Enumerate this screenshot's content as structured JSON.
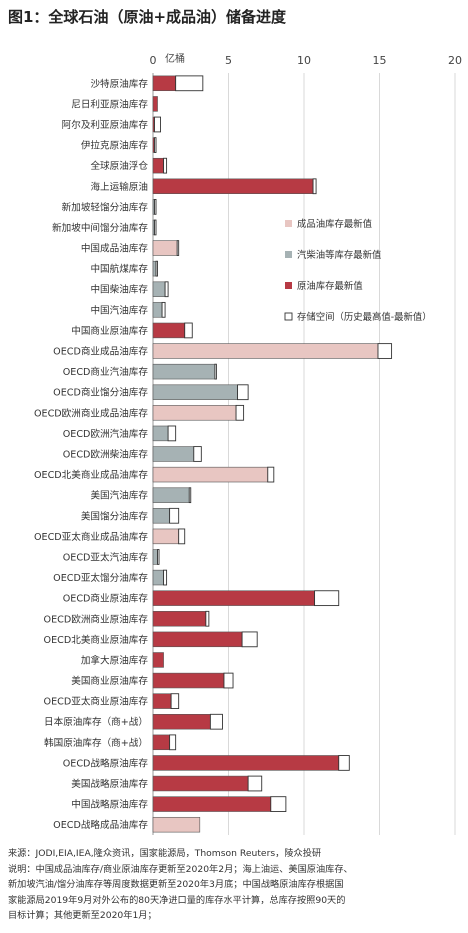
{
  "title": "图1：全球石油（原油+成品油）储备进度",
  "chart_data": {
    "type": "bar",
    "orientation": "horizontal",
    "stacked": true,
    "unit": "亿桶",
    "xlim": [
      0,
      20
    ],
    "xticks": [
      "0",
      "5",
      "10",
      "15",
      "20"
    ],
    "grid": true,
    "legend_position": "right",
    "legend": [
      {
        "key": "product",
        "label": "成品油库存最新值",
        "color": "#e8c6c2"
      },
      {
        "key": "distillate",
        "label": "汽柴油等库存最新值",
        "color": "#a6b2b4"
      },
      {
        "key": "crude",
        "label": "原油库存最新值",
        "color": "#b73a44"
      },
      {
        "key": "space",
        "label": "存储空间（历史最高值-最新值）",
        "color": "#ffffff"
      }
    ],
    "categories": [
      "沙特原油库存",
      "尼日利亚原油库存",
      "阿尔及利亚原油库存",
      "伊拉克原油库存",
      "全球原油浮仓",
      "海上运输原油",
      "新加坡轻馏分油库存",
      "新加坡中间馏分油库存",
      "中国成品油库存",
      "中国航煤库存",
      "中国柴油库存",
      "中国汽油库存",
      "中国商业原油库存",
      "OECD商业成品油库存",
      "OECD商业汽油库存",
      "OECD商业馏分油库存",
      "OECD欧洲商业成品油库存",
      "OECD欧洲汽油库存",
      "OECD欧洲柴油库存",
      "OECD北美商业成品油库存",
      "美国汽油库存",
      "美国馏分油库存",
      "OECD亚太商业成品油库存",
      "OECD亚太汽油库存",
      "OECD亚太馏分油库存",
      "OECD商业原油库存",
      "OECD欧洲商业原油库存",
      "OECD北美商业原油库存",
      "加拿大原油库存",
      "美国商业原油库存",
      "OECD亚太商业原油库存",
      "日本原油库存（商+战）",
      "韩国原油库存（商+战）",
      "OECD战略原油库存",
      "美国战略原油库存",
      "中国战略原油库存",
      "OECD战略成品油库存"
    ],
    "series_type": [
      "crude",
      "crude",
      "crude",
      "crude",
      "crude",
      "crude",
      "distillate",
      "distillate",
      "product",
      "distillate",
      "distillate",
      "distillate",
      "crude",
      "product",
      "distillate",
      "distillate",
      "product",
      "distillate",
      "distillate",
      "product",
      "distillate",
      "distillate",
      "product",
      "distillate",
      "distillate",
      "crude",
      "crude",
      "crude",
      "crude",
      "crude",
      "crude",
      "crude",
      "crude",
      "crude",
      "crude",
      "crude",
      "product"
    ],
    "latest": [
      1.5,
      0.3,
      0.1,
      0.1,
      0.7,
      10.6,
      0.1,
      0.1,
      1.6,
      0.2,
      0.8,
      0.6,
      2.1,
      14.9,
      4.1,
      5.6,
      5.5,
      1.0,
      2.7,
      7.6,
      2.4,
      1.1,
      1.7,
      0.3,
      0.7,
      10.7,
      3.5,
      5.9,
      0.7,
      4.7,
      1.2,
      3.8,
      1.1,
      12.3,
      6.3,
      7.8,
      3.1
    ],
    "space": [
      1.8,
      0.0,
      0.4,
      0.1,
      0.2,
      0.2,
      0.1,
      0.1,
      0.1,
      0.1,
      0.2,
      0.2,
      0.5,
      0.9,
      0.1,
      0.7,
      0.5,
      0.5,
      0.5,
      0.4,
      0.1,
      0.6,
      0.4,
      0.1,
      0.2,
      1.6,
      0.2,
      1.0,
      0.0,
      0.6,
      0.5,
      0.8,
      0.4,
      0.7,
      0.9,
      1.0,
      0.0
    ]
  },
  "footer": {
    "source": "来源：JODI,EIA,IEA,隆众资讯，国家能源局，Thomson Reuters，陵众投研",
    "note1": "说明：中国成品油库存/商业原油库存更新至2020年2月；海上油运、美国原油库存、",
    "note2": "新加坡汽油/馏分油库存等周度数据更新至2020年3月底；中国战略原油库存根据国",
    "note3": "家能源局2019年9月对外公布的80天净进口量的库存水平计算，总库存按照90天的",
    "note4": "目标计算；其他更新至2020年1月；"
  }
}
